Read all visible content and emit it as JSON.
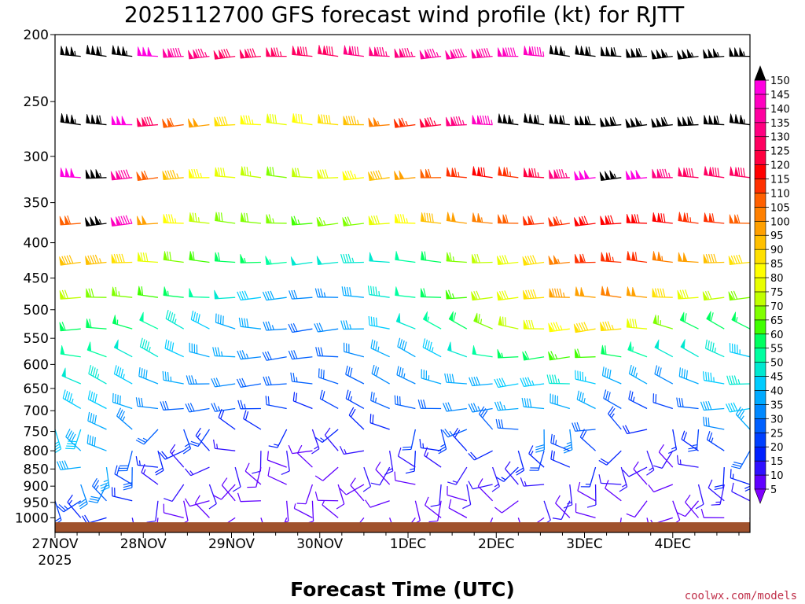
{
  "chart_data": {
    "type": "wind-barb profile (time-height)",
    "title": "2025112700 GFS forecast wind profile (kt) for RJTT",
    "xlabel": "Forecast Time (UTC)",
    "credit": "coolwx.com/models",
    "y_axis": {
      "scale": "log",
      "range": [
        200,
        1050
      ],
      "inverted": true,
      "ticks": [
        200,
        250,
        300,
        350,
        400,
        450,
        500,
        550,
        600,
        650,
        700,
        750,
        800,
        850,
        900,
        950,
        1000
      ]
    },
    "x_axis": {
      "range": [
        0,
        189
      ],
      "unit": "hours since 2025112700",
      "ticks": [
        {
          "hour": 0,
          "label": "27NOV",
          "sub": "2025"
        },
        {
          "hour": 24,
          "label": "28NOV",
          "sub": ""
        },
        {
          "hour": 48,
          "label": "29NOV",
          "sub": ""
        },
        {
          "hour": 72,
          "label": "30NOV",
          "sub": ""
        },
        {
          "hour": 96,
          "label": "1DEC",
          "sub": ""
        },
        {
          "hour": 120,
          "label": "2DEC",
          "sub": ""
        },
        {
          "hour": 144,
          "label": "3DEC",
          "sub": ""
        },
        {
          "hour": 168,
          "label": "4DEC",
          "sub": ""
        }
      ]
    },
    "colorbar": {
      "levels": [
        5,
        10,
        15,
        20,
        25,
        30,
        35,
        40,
        45,
        50,
        55,
        60,
        65,
        70,
        75,
        80,
        85,
        90,
        95,
        100,
        105,
        110,
        115,
        120,
        125,
        130,
        135,
        140,
        145,
        150
      ],
      "colors": [
        "#8000ff",
        "#6000ff",
        "#3010ff",
        "#0020ff",
        "#0040ff",
        "#0060ff",
        "#0088ff",
        "#00aaff",
        "#00ccff",
        "#00e8d0",
        "#00ffa0",
        "#00ff60",
        "#40ff00",
        "#80ff00",
        "#c0ff00",
        "#e8ff00",
        "#ffff00",
        "#ffe000",
        "#ffc000",
        "#ffa000",
        "#ff8000",
        "#ff6000",
        "#ff3000",
        "#ff0000",
        "#ff0040",
        "#ff0060",
        "#ff0080",
        "#ff00a0",
        "#ff00c0",
        "#ff00e0"
      ],
      "above_max_color": "#000000"
    },
    "series": [
      {
        "level": 215,
        "speeds": [
          140,
          155,
          160,
          155,
          148,
          140,
          135,
          130,
          128,
          126,
          128,
          130,
          132,
          134,
          135,
          136,
          138,
          140,
          142,
          145,
          155,
          160,
          160,
          158,
          156,
          155,
          154,
          155
        ]
      },
      {
        "level": 270,
        "speeds": [
          150,
          155,
          158,
          150,
          130,
          110,
          100,
          90,
          85,
          80,
          82,
          88,
          95,
          105,
          115,
          125,
          135,
          145,
          155,
          158,
          160,
          160,
          158,
          156,
          158,
          160,
          158,
          156
        ]
      },
      {
        "level": 322,
        "speeds": [
          130,
          150,
          155,
          140,
          110,
          95,
          85,
          80,
          75,
          70,
          72,
          78,
          85,
          92,
          98,
          108,
          115,
          118,
          115,
          125,
          135,
          148,
          155,
          150,
          135,
          130,
          128,
          128
        ]
      },
      {
        "level": 375,
        "speeds": [
          100,
          110,
          155,
          145,
          100,
          85,
          75,
          70,
          68,
          66,
          64,
          66,
          70,
          78,
          85,
          92,
          98,
          105,
          108,
          112,
          115,
          118,
          120,
          120,
          118,
          115,
          112,
          110
        ]
      },
      {
        "level": 427,
        "speeds": [
          78,
          92,
          95,
          88,
          80,
          70,
          62,
          58,
          56,
          54,
          50,
          48,
          46,
          48,
          52,
          58,
          66,
          72,
          78,
          90,
          105,
          112,
          115,
          112,
          105,
          98,
          92,
          90
        ]
      },
      {
        "level": 480,
        "speeds": [
          68,
          72,
          70,
          66,
          62,
          56,
          52,
          48,
          42,
          38,
          32,
          34,
          40,
          46,
          52,
          58,
          64,
          72,
          80,
          88,
          96,
          100,
          102,
          98,
          90,
          78,
          72,
          70
        ]
      },
      {
        "level": 533,
        "speeds": [
          55,
          58,
          58,
          56,
          52,
          46,
          42,
          40,
          38,
          34,
          30,
          32,
          36,
          42,
          48,
          54,
          60,
          66,
          72,
          78,
          84,
          88,
          86,
          78,
          66,
          60,
          58,
          56
        ]
      },
      {
        "level": 585,
        "speeds": [
          50,
          52,
          52,
          50,
          46,
          42,
          38,
          36,
          34,
          30,
          28,
          30,
          32,
          36,
          40,
          44,
          48,
          52,
          56,
          60,
          64,
          62,
          58,
          54,
          50,
          48,
          46,
          44
        ]
      },
      {
        "level": 640,
        "speeds": [
          48,
          48,
          46,
          44,
          40,
          36,
          34,
          32,
          30,
          28,
          26,
          28,
          30,
          32,
          34,
          36,
          38,
          40,
          42,
          44,
          46,
          44,
          40,
          36,
          32,
          38,
          44,
          46
        ]
      },
      {
        "level": 695,
        "speeds": [
          44,
          44,
          42,
          38,
          32,
          30,
          28,
          26,
          24,
          22,
          20,
          22,
          24,
          26,
          28,
          30,
          32,
          34,
          36,
          38,
          40,
          36,
          30,
          24,
          22,
          30,
          38,
          42
        ]
      },
      {
        "level": 745,
        "speeds": [
          42,
          42,
          40,
          34,
          26,
          24,
          22,
          20,
          18,
          16,
          14,
          16,
          18,
          20,
          22,
          24,
          26,
          28,
          30,
          32,
          34,
          30,
          24,
          18,
          16,
          24,
          32,
          36
        ]
      },
      {
        "level": 800,
        "speeds": [
          40,
          40,
          38,
          30,
          20,
          18,
          16,
          14,
          12,
          12,
          10,
          12,
          14,
          14,
          16,
          16,
          18,
          18,
          20,
          22,
          24,
          22,
          18,
          14,
          12,
          18,
          24,
          28
        ]
      },
      {
        "level": 845,
        "speeds": [
          38,
          38,
          36,
          28,
          16,
          14,
          14,
          12,
          10,
          10,
          8,
          10,
          12,
          12,
          12,
          14,
          14,
          14,
          16,
          16,
          18,
          16,
          14,
          12,
          10,
          14,
          18,
          20
        ]
      },
      {
        "level": 895,
        "speeds": [
          30,
          32,
          32,
          22,
          14,
          12,
          12,
          10,
          10,
          8,
          8,
          8,
          10,
          10,
          10,
          12,
          12,
          12,
          12,
          14,
          14,
          12,
          12,
          10,
          8,
          12,
          14,
          16
        ]
      },
      {
        "level": 945,
        "speeds": [
          22,
          24,
          26,
          18,
          12,
          10,
          10,
          10,
          8,
          8,
          6,
          8,
          8,
          8,
          10,
          10,
          10,
          10,
          10,
          12,
          12,
          10,
          10,
          8,
          8,
          10,
          12,
          12
        ]
      },
      {
        "level": 1000,
        "speeds": [
          14,
          16,
          18,
          14,
          10,
          8,
          8,
          8,
          6,
          6,
          6,
          6,
          6,
          8,
          8,
          8,
          8,
          8,
          8,
          10,
          10,
          8,
          8,
          6,
          6,
          8,
          10,
          10
        ]
      }
    ],
    "terrain_surface_hpa": 1015
  }
}
